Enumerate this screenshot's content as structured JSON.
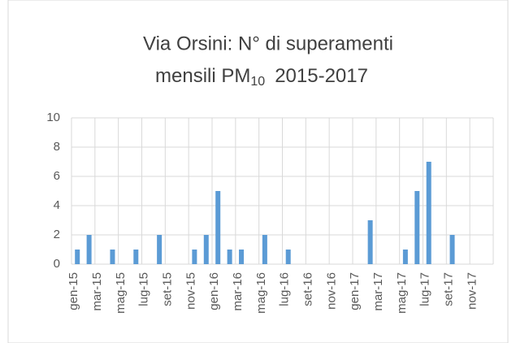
{
  "chart_data": {
    "type": "bar",
    "title": [
      "Via Orsini: N° di superamenti",
      "mensili PM",
      "10",
      "2015-2017"
    ],
    "categories": [
      "gen-15",
      null,
      "mar-15",
      null,
      "mag-15",
      null,
      "lug-15",
      null,
      "set-15",
      null,
      "nov-15",
      null,
      "gen-16",
      null,
      "mar-16",
      null,
      "mag-16",
      null,
      "lug-16",
      null,
      "set-16",
      null,
      "nov-16",
      null,
      "gen-17",
      null,
      "mar-17",
      null,
      "mag-17",
      null,
      "lug-17",
      null,
      "set-17",
      null,
      "nov-17",
      null
    ],
    "values": [
      1,
      2,
      0,
      1,
      0,
      1,
      0,
      2,
      0,
      0,
      1,
      2,
      5,
      1,
      1,
      0,
      2,
      0,
      1,
      0,
      0,
      0,
      0,
      0,
      0,
      3,
      0,
      0,
      1,
      5,
      7,
      0,
      2,
      0,
      0,
      0
    ],
    "color": "#5b9bd5",
    "ylim": [
      0,
      10
    ],
    "yticks": [
      0,
      2,
      4,
      6,
      8,
      10
    ],
    "grid": true
  }
}
